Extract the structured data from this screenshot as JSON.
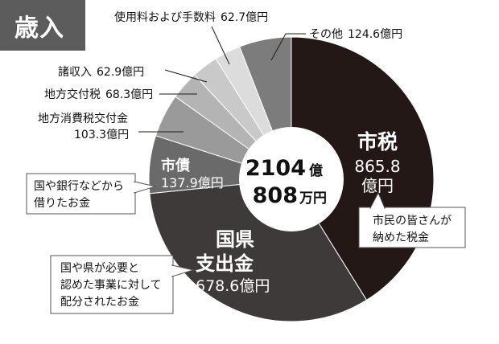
{
  "header": {
    "title": "歳入"
  },
  "center": {
    "line1": "2104",
    "unit1": "億",
    "line2": "808",
    "unit2": "万円"
  },
  "colors": {
    "shi_zei": "#231815",
    "kenshishutsukin": "#3e3a39",
    "shisai": "#6a6a6a",
    "chihoshohizei": "#9a9a9a",
    "chihokofuzei": "#b4b4b4",
    "shushunyu": "#c9c9c9",
    "shiyoryo": "#dcdcdc",
    "sonota": "#7c7c7c"
  },
  "chart_data": {
    "type": "pie",
    "title": "歳入",
    "unit": "億円",
    "total_label": "2104億808万円",
    "slices": [
      {
        "key": "shi_zei",
        "name": "市税",
        "value": 865.8,
        "value_label": "865.8",
        "unit_label": "億円"
      },
      {
        "key": "kenshishutsukin",
        "name": "国県支出金",
        "value": 678.6,
        "value_label": "678.6億円"
      },
      {
        "key": "shisai",
        "name": "市債",
        "value": 137.9,
        "value_label": "137.9億円"
      },
      {
        "key": "chihoshohizei",
        "name": "地方消費税交付金",
        "value": 103.3,
        "value_label": "103.3億円"
      },
      {
        "key": "chihokofuzei",
        "name": "地方交付税",
        "value": 68.3,
        "value_label": "68.3億円"
      },
      {
        "key": "shushunyu",
        "name": "諸収入",
        "value": 62.9,
        "value_label": "62.9億円"
      },
      {
        "key": "shiyoryo",
        "name": "使用料および手数料",
        "value": 62.7,
        "value_label": "62.7億円"
      },
      {
        "key": "sonota",
        "name": "その他",
        "value": 124.6,
        "value_label": "124.6億円"
      }
    ],
    "callouts": {
      "shi_zei": "市民の皆さんが\n納めた税金",
      "shisai": "国や銀行などから\n借りたお金",
      "kenshishutsukin": "国や県が必要と\n認めた事業に対して\n配分されたお金"
    },
    "inner_labels": {
      "shi_zei": "市税",
      "kenshishutsukin_line1": "国県",
      "kenshishutsukin_line2": "支出金"
    }
  }
}
